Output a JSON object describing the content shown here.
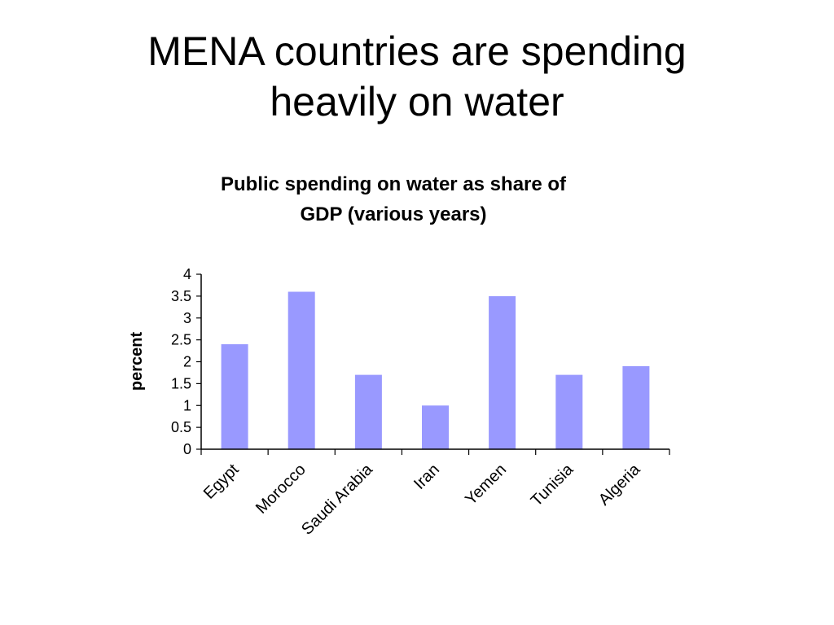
{
  "slide": {
    "title_line1": "MENA countries are spending",
    "title_line2": "heavily on water"
  },
  "chart_data": {
    "type": "bar",
    "title_line1": "Public spending on water as share of",
    "title_line2": "GDP (various years)",
    "xlabel": "",
    "ylabel": "percent",
    "categories": [
      "Egypt",
      "Morocco",
      "Saudi Arabia",
      "Iran",
      "Yemen",
      "Tunisia",
      "Algeria"
    ],
    "values": [
      2.4,
      3.6,
      1.7,
      1.0,
      3.5,
      1.7,
      1.9
    ],
    "ylim": [
      0,
      4
    ],
    "yticks": [
      "0",
      "0.5",
      "1",
      "1.5",
      "2",
      "2.5",
      "3",
      "3.5",
      "4"
    ],
    "grid": false,
    "legend": "none",
    "bar_color": "#9999ff"
  }
}
